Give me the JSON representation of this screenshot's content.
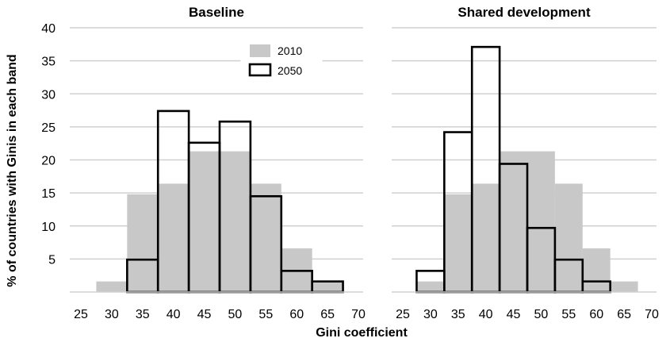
{
  "chart_data": {
    "type": "bar",
    "ylabel": "% of countries with Ginis in each band",
    "xlabel": "Gini coefficient",
    "ylim": [
      0,
      40
    ],
    "yticks": [
      5,
      10,
      15,
      20,
      25,
      30,
      35,
      40
    ],
    "xlim": [
      25,
      70
    ],
    "xticks": [
      25,
      30,
      35,
      40,
      45,
      50,
      55,
      60,
      65,
      70
    ],
    "bin_width": 5,
    "grid": true,
    "legend": {
      "placement": "top-right of first panel",
      "entries": [
        "2010",
        "2050"
      ]
    },
    "colors": {
      "2010": "#c8c8c8",
      "2050": "#000000",
      "grid": "#d0d0d0"
    },
    "panels": [
      {
        "title": "Baseline",
        "series": [
          {
            "name": "2010",
            "style": "filled",
            "bin_centers": [
              30,
              35,
              40,
              45,
              50,
              55,
              60,
              65
            ],
            "values": [
              1.6,
              14.8,
              16.4,
              21.3,
              21.3,
              16.4,
              6.6,
              1.6
            ]
          },
          {
            "name": "2050",
            "style": "outline",
            "bin_centers": [
              35,
              40,
              45,
              50,
              55,
              60,
              65
            ],
            "values": [
              4.9,
              27.4,
              22.6,
              25.8,
              14.5,
              3.2,
              1.6
            ]
          }
        ]
      },
      {
        "title": "Shared development",
        "series": [
          {
            "name": "2010",
            "style": "filled",
            "bin_centers": [
              30,
              35,
              40,
              45,
              50,
              55,
              60,
              65
            ],
            "values": [
              1.6,
              14.8,
              16.4,
              21.3,
              21.3,
              16.4,
              6.6,
              1.6
            ]
          },
          {
            "name": "2050",
            "style": "outline",
            "bin_centers": [
              30,
              35,
              40,
              45,
              50,
              55,
              60
            ],
            "values": [
              3.2,
              24.2,
              37.1,
              19.4,
              9.7,
              4.9,
              1.6
            ]
          }
        ]
      }
    ]
  }
}
